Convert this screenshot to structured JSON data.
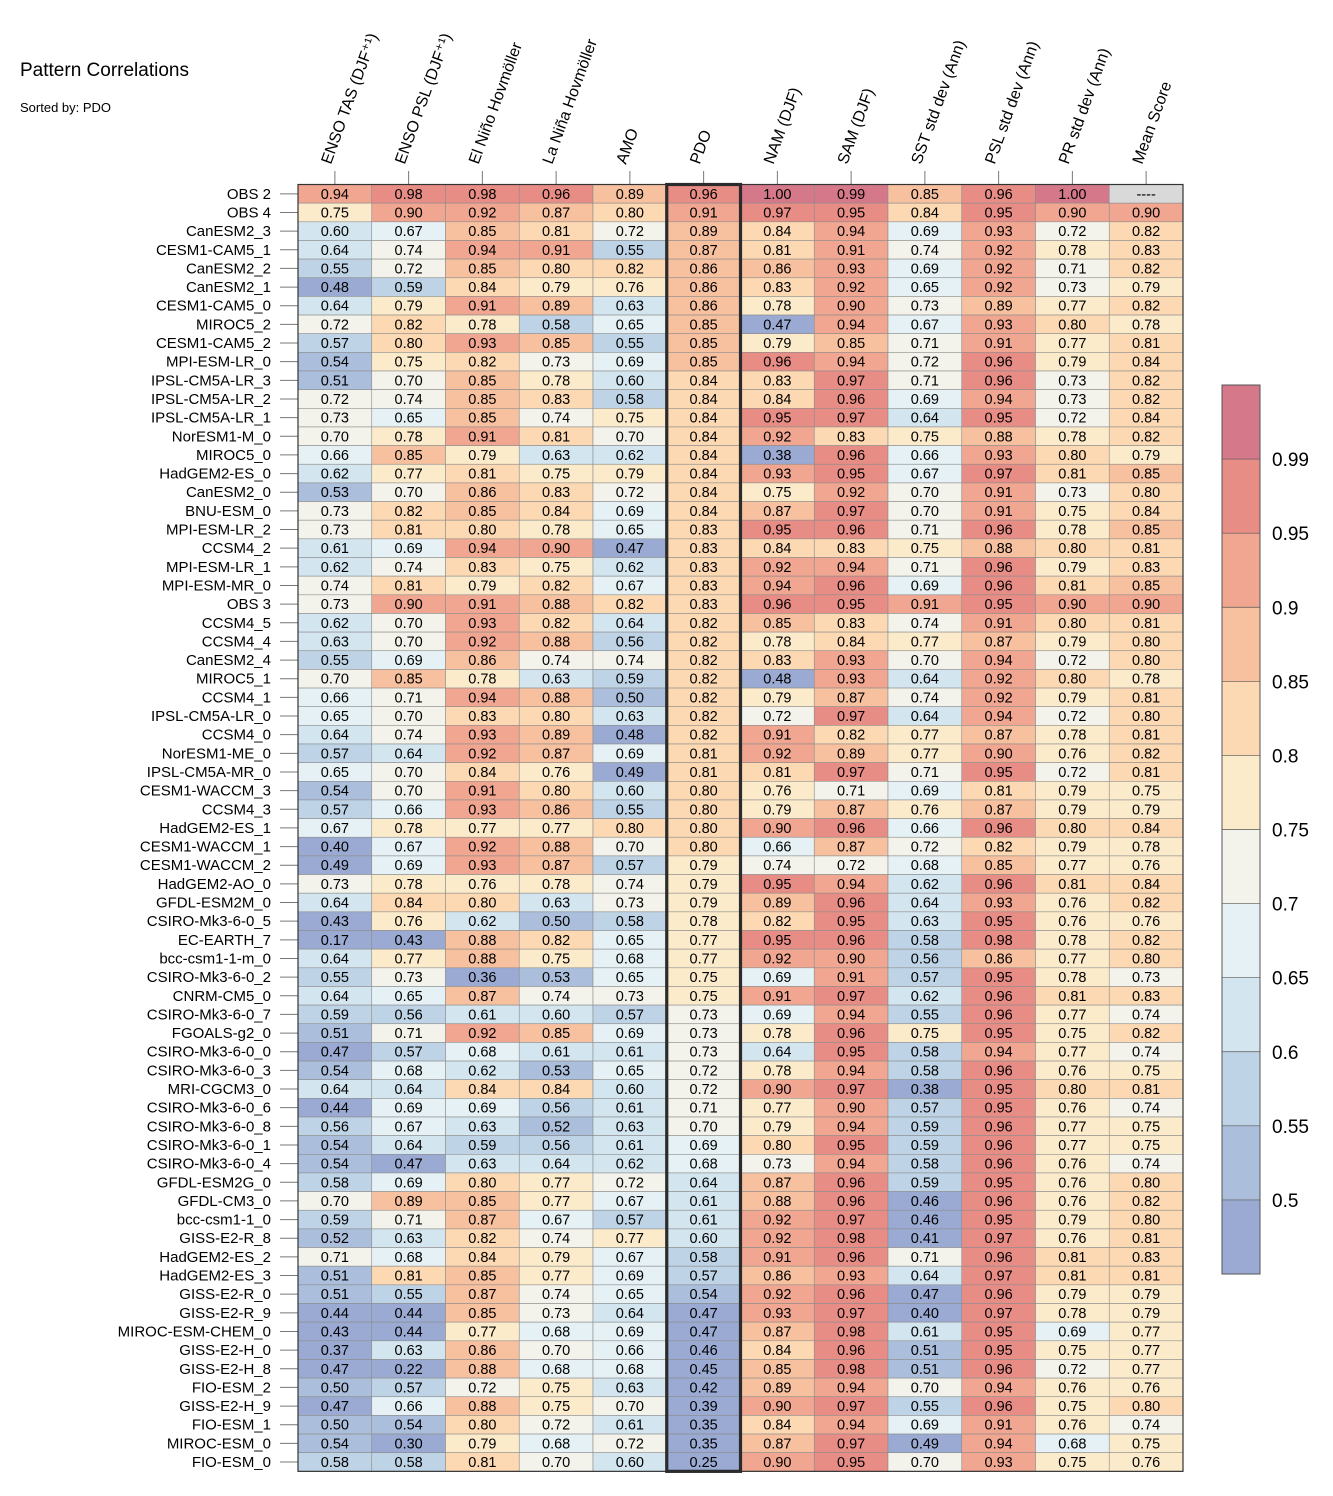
{
  "title": "Pattern Correlations",
  "subtitle": "Sorted by: PDO",
  "chart_data": {
    "type": "heatmap",
    "title": "Pattern Correlations",
    "subtitle": "Sorted by: PDO",
    "sorted_by": "PDO",
    "highlighted_column": "PDO",
    "columns": [
      "ENSO TAS (DJF⁺¹)",
      "ENSO PSL (DJF⁺¹)",
      "El Niño Hovmöller",
      "La Niña Hovmöller",
      "AMO",
      "PDO",
      "NAM (DJF)",
      "SAM (DJF)",
      "SST std dev (Ann)",
      "PSL std dev (Ann)",
      "PR std dev (Ann)",
      "Mean Score"
    ],
    "rows": [
      {
        "name": "OBS 2",
        "values": [
          0.94,
          0.98,
          0.98,
          0.96,
          0.89,
          0.96,
          1.0,
          0.99,
          0.85,
          0.96,
          1.0,
          null
        ]
      },
      {
        "name": "OBS 4",
        "values": [
          0.75,
          0.9,
          0.92,
          0.87,
          0.8,
          0.91,
          0.97,
          0.95,
          0.84,
          0.95,
          0.9,
          0.9
        ]
      },
      {
        "name": "CanESM2_3",
        "values": [
          0.6,
          0.67,
          0.85,
          0.81,
          0.72,
          0.89,
          0.84,
          0.94,
          0.69,
          0.93,
          0.72,
          0.82
        ]
      },
      {
        "name": "CESM1-CAM5_1",
        "values": [
          0.64,
          0.74,
          0.94,
          0.91,
          0.55,
          0.87,
          0.81,
          0.91,
          0.74,
          0.92,
          0.78,
          0.83
        ]
      },
      {
        "name": "CanESM2_2",
        "values": [
          0.55,
          0.72,
          0.85,
          0.8,
          0.82,
          0.86,
          0.86,
          0.93,
          0.69,
          0.92,
          0.71,
          0.82
        ]
      },
      {
        "name": "CanESM2_1",
        "values": [
          0.48,
          0.59,
          0.84,
          0.79,
          0.76,
          0.86,
          0.83,
          0.92,
          0.65,
          0.92,
          0.73,
          0.79
        ]
      },
      {
        "name": "CESM1-CAM5_0",
        "values": [
          0.64,
          0.79,
          0.91,
          0.89,
          0.63,
          0.86,
          0.78,
          0.9,
          0.73,
          0.89,
          0.77,
          0.82
        ]
      },
      {
        "name": "MIROC5_2",
        "values": [
          0.72,
          0.82,
          0.78,
          0.58,
          0.65,
          0.85,
          0.47,
          0.94,
          0.67,
          0.93,
          0.8,
          0.78
        ]
      },
      {
        "name": "CESM1-CAM5_2",
        "values": [
          0.57,
          0.8,
          0.93,
          0.85,
          0.55,
          0.85,
          0.79,
          0.85,
          0.71,
          0.91,
          0.77,
          0.81
        ]
      },
      {
        "name": "MPI-ESM-LR_0",
        "values": [
          0.54,
          0.75,
          0.82,
          0.73,
          0.69,
          0.85,
          0.96,
          0.94,
          0.72,
          0.96,
          0.79,
          0.84
        ]
      },
      {
        "name": "IPSL-CM5A-LR_3",
        "values": [
          0.51,
          0.7,
          0.85,
          0.78,
          0.6,
          0.84,
          0.83,
          0.97,
          0.71,
          0.96,
          0.73,
          0.82
        ]
      },
      {
        "name": "IPSL-CM5A-LR_2",
        "values": [
          0.72,
          0.74,
          0.85,
          0.83,
          0.58,
          0.84,
          0.84,
          0.96,
          0.69,
          0.94,
          0.73,
          0.82
        ]
      },
      {
        "name": "IPSL-CM5A-LR_1",
        "values": [
          0.73,
          0.65,
          0.85,
          0.74,
          0.75,
          0.84,
          0.95,
          0.97,
          0.64,
          0.95,
          0.72,
          0.84
        ]
      },
      {
        "name": "NorESM1-M_0",
        "values": [
          0.7,
          0.78,
          0.91,
          0.81,
          0.7,
          0.84,
          0.92,
          0.83,
          0.75,
          0.88,
          0.78,
          0.82
        ]
      },
      {
        "name": "MIROC5_0",
        "values": [
          0.66,
          0.85,
          0.79,
          0.63,
          0.62,
          0.84,
          0.38,
          0.96,
          0.66,
          0.93,
          0.8,
          0.79
        ]
      },
      {
        "name": "HadGEM2-ES_0",
        "values": [
          0.62,
          0.77,
          0.81,
          0.75,
          0.79,
          0.84,
          0.93,
          0.95,
          0.67,
          0.97,
          0.81,
          0.85
        ]
      },
      {
        "name": "CanESM2_0",
        "values": [
          0.53,
          0.7,
          0.86,
          0.83,
          0.72,
          0.84,
          0.75,
          0.92,
          0.7,
          0.91,
          0.73,
          0.8
        ]
      },
      {
        "name": "BNU-ESM_0",
        "values": [
          0.73,
          0.82,
          0.85,
          0.84,
          0.69,
          0.84,
          0.87,
          0.97,
          0.7,
          0.91,
          0.75,
          0.84
        ]
      },
      {
        "name": "MPI-ESM-LR_2",
        "values": [
          0.73,
          0.81,
          0.8,
          0.78,
          0.65,
          0.83,
          0.95,
          0.96,
          0.71,
          0.96,
          0.78,
          0.85
        ]
      },
      {
        "name": "CCSM4_2",
        "values": [
          0.61,
          0.69,
          0.94,
          0.9,
          0.47,
          0.83,
          0.84,
          0.83,
          0.75,
          0.88,
          0.8,
          0.81
        ]
      },
      {
        "name": "MPI-ESM-LR_1",
        "values": [
          0.62,
          0.74,
          0.83,
          0.75,
          0.62,
          0.83,
          0.92,
          0.94,
          0.71,
          0.96,
          0.79,
          0.83
        ]
      },
      {
        "name": "MPI-ESM-MR_0",
        "values": [
          0.74,
          0.81,
          0.79,
          0.82,
          0.67,
          0.83,
          0.94,
          0.96,
          0.69,
          0.96,
          0.81,
          0.85
        ]
      },
      {
        "name": "OBS 3",
        "values": [
          0.73,
          0.9,
          0.91,
          0.88,
          0.82,
          0.83,
          0.96,
          0.95,
          0.91,
          0.95,
          0.9,
          0.9
        ]
      },
      {
        "name": "CCSM4_5",
        "values": [
          0.62,
          0.7,
          0.93,
          0.82,
          0.64,
          0.82,
          0.85,
          0.83,
          0.74,
          0.91,
          0.8,
          0.81
        ]
      },
      {
        "name": "CCSM4_4",
        "values": [
          0.63,
          0.7,
          0.92,
          0.88,
          0.56,
          0.82,
          0.78,
          0.84,
          0.77,
          0.87,
          0.79,
          0.8
        ]
      },
      {
        "name": "CanESM2_4",
        "values": [
          0.55,
          0.69,
          0.86,
          0.74,
          0.74,
          0.82,
          0.83,
          0.93,
          0.7,
          0.94,
          0.72,
          0.8
        ]
      },
      {
        "name": "MIROC5_1",
        "values": [
          0.7,
          0.85,
          0.78,
          0.63,
          0.59,
          0.82,
          0.48,
          0.93,
          0.64,
          0.92,
          0.8,
          0.78
        ]
      },
      {
        "name": "CCSM4_1",
        "values": [
          0.66,
          0.71,
          0.94,
          0.88,
          0.5,
          0.82,
          0.79,
          0.87,
          0.74,
          0.92,
          0.79,
          0.81
        ]
      },
      {
        "name": "IPSL-CM5A-LR_0",
        "values": [
          0.65,
          0.7,
          0.83,
          0.8,
          0.63,
          0.82,
          0.72,
          0.97,
          0.64,
          0.94,
          0.72,
          0.8
        ]
      },
      {
        "name": "CCSM4_0",
        "values": [
          0.64,
          0.74,
          0.93,
          0.89,
          0.48,
          0.82,
          0.91,
          0.82,
          0.77,
          0.87,
          0.78,
          0.81
        ]
      },
      {
        "name": "NorESM1-ME_0",
        "values": [
          0.57,
          0.64,
          0.92,
          0.87,
          0.69,
          0.81,
          0.92,
          0.89,
          0.77,
          0.9,
          0.76,
          0.82
        ]
      },
      {
        "name": "IPSL-CM5A-MR_0",
        "values": [
          0.65,
          0.7,
          0.84,
          0.76,
          0.49,
          0.81,
          0.81,
          0.97,
          0.71,
          0.95,
          0.72,
          0.81
        ]
      },
      {
        "name": "CESM1-WACCM_3",
        "values": [
          0.54,
          0.7,
          0.91,
          0.8,
          0.6,
          0.8,
          0.76,
          0.71,
          0.69,
          0.81,
          0.79,
          0.75
        ]
      },
      {
        "name": "CCSM4_3",
        "values": [
          0.57,
          0.66,
          0.93,
          0.86,
          0.55,
          0.8,
          0.79,
          0.87,
          0.76,
          0.87,
          0.79,
          0.79
        ]
      },
      {
        "name": "HadGEM2-ES_1",
        "values": [
          0.67,
          0.78,
          0.77,
          0.77,
          0.8,
          0.8,
          0.9,
          0.96,
          0.66,
          0.96,
          0.8,
          0.84
        ]
      },
      {
        "name": "CESM1-WACCM_1",
        "values": [
          0.4,
          0.67,
          0.92,
          0.88,
          0.7,
          0.8,
          0.66,
          0.87,
          0.72,
          0.82,
          0.79,
          0.78
        ]
      },
      {
        "name": "CESM1-WACCM_2",
        "values": [
          0.49,
          0.69,
          0.93,
          0.87,
          0.57,
          0.79,
          0.74,
          0.72,
          0.68,
          0.85,
          0.77,
          0.76
        ]
      },
      {
        "name": "HadGEM2-AO_0",
        "values": [
          0.73,
          0.78,
          0.76,
          0.78,
          0.74,
          0.79,
          0.95,
          0.94,
          0.62,
          0.96,
          0.81,
          0.84
        ]
      },
      {
        "name": "GFDL-ESM2M_0",
        "values": [
          0.64,
          0.84,
          0.8,
          0.63,
          0.73,
          0.79,
          0.89,
          0.96,
          0.64,
          0.93,
          0.76,
          0.82
        ]
      },
      {
        "name": "CSIRO-Mk3-6-0_5",
        "values": [
          0.43,
          0.76,
          0.62,
          0.5,
          0.58,
          0.78,
          0.82,
          0.95,
          0.63,
          0.95,
          0.76,
          0.76
        ]
      },
      {
        "name": "EC-EARTH_7",
        "values": [
          0.17,
          0.43,
          0.88,
          0.82,
          0.65,
          0.77,
          0.95,
          0.96,
          0.58,
          0.98,
          0.78,
          0.82
        ]
      },
      {
        "name": "bcc-csm1-1-m_0",
        "values": [
          0.64,
          0.77,
          0.88,
          0.75,
          0.68,
          0.77,
          0.92,
          0.9,
          0.56,
          0.86,
          0.77,
          0.8
        ]
      },
      {
        "name": "CSIRO-Mk3-6-0_2",
        "values": [
          0.55,
          0.73,
          0.36,
          0.53,
          0.65,
          0.75,
          0.69,
          0.91,
          0.57,
          0.95,
          0.78,
          0.73
        ]
      },
      {
        "name": "CNRM-CM5_0",
        "values": [
          0.64,
          0.65,
          0.87,
          0.74,
          0.73,
          0.75,
          0.91,
          0.97,
          0.62,
          0.96,
          0.81,
          0.83
        ]
      },
      {
        "name": "CSIRO-Mk3-6-0_7",
        "values": [
          0.59,
          0.56,
          0.61,
          0.6,
          0.57,
          0.73,
          0.69,
          0.94,
          0.55,
          0.96,
          0.77,
          0.74
        ]
      },
      {
        "name": "FGOALS-g2_0",
        "values": [
          0.51,
          0.71,
          0.92,
          0.85,
          0.69,
          0.73,
          0.78,
          0.96,
          0.75,
          0.95,
          0.75,
          0.82
        ]
      },
      {
        "name": "CSIRO-Mk3-6-0_0",
        "values": [
          0.47,
          0.57,
          0.68,
          0.61,
          0.61,
          0.73,
          0.64,
          0.95,
          0.58,
          0.94,
          0.77,
          0.74
        ]
      },
      {
        "name": "CSIRO-Mk3-6-0_3",
        "values": [
          0.54,
          0.68,
          0.62,
          0.53,
          0.65,
          0.72,
          0.78,
          0.94,
          0.58,
          0.96,
          0.76,
          0.75
        ]
      },
      {
        "name": "MRI-CGCM3_0",
        "values": [
          0.64,
          0.64,
          0.84,
          0.84,
          0.6,
          0.72,
          0.9,
          0.97,
          0.38,
          0.95,
          0.8,
          0.81
        ]
      },
      {
        "name": "CSIRO-Mk3-6-0_6",
        "values": [
          0.44,
          0.69,
          0.69,
          0.56,
          0.61,
          0.71,
          0.77,
          0.9,
          0.57,
          0.95,
          0.76,
          0.74
        ]
      },
      {
        "name": "CSIRO-Mk3-6-0_8",
        "values": [
          0.56,
          0.67,
          0.63,
          0.52,
          0.63,
          0.7,
          0.79,
          0.94,
          0.59,
          0.96,
          0.77,
          0.75
        ]
      },
      {
        "name": "CSIRO-Mk3-6-0_1",
        "values": [
          0.54,
          0.64,
          0.59,
          0.56,
          0.61,
          0.69,
          0.8,
          0.95,
          0.59,
          0.96,
          0.77,
          0.75
        ]
      },
      {
        "name": "CSIRO-Mk3-6-0_4",
        "values": [
          0.54,
          0.47,
          0.63,
          0.64,
          0.62,
          0.68,
          0.73,
          0.94,
          0.58,
          0.96,
          0.76,
          0.74
        ]
      },
      {
        "name": "GFDL-ESM2G_0",
        "values": [
          0.58,
          0.69,
          0.8,
          0.77,
          0.72,
          0.64,
          0.87,
          0.96,
          0.59,
          0.95,
          0.76,
          0.8
        ]
      },
      {
        "name": "GFDL-CM3_0",
        "values": [
          0.7,
          0.89,
          0.85,
          0.77,
          0.67,
          0.61,
          0.88,
          0.96,
          0.46,
          0.96,
          0.76,
          0.82
        ]
      },
      {
        "name": "bcc-csm1-1_0",
        "values": [
          0.59,
          0.71,
          0.87,
          0.67,
          0.57,
          0.61,
          0.92,
          0.97,
          0.46,
          0.95,
          0.79,
          0.8
        ]
      },
      {
        "name": "GISS-E2-R_8",
        "values": [
          0.52,
          0.63,
          0.82,
          0.74,
          0.77,
          0.6,
          0.92,
          0.98,
          0.41,
          0.97,
          0.76,
          0.81
        ]
      },
      {
        "name": "HadGEM2-ES_2",
        "values": [
          0.71,
          0.68,
          0.84,
          0.79,
          0.67,
          0.58,
          0.91,
          0.96,
          0.71,
          0.96,
          0.81,
          0.83
        ]
      },
      {
        "name": "HadGEM2-ES_3",
        "values": [
          0.51,
          0.81,
          0.85,
          0.77,
          0.69,
          0.57,
          0.86,
          0.93,
          0.64,
          0.97,
          0.81,
          0.81
        ]
      },
      {
        "name": "GISS-E2-R_0",
        "values": [
          0.51,
          0.55,
          0.87,
          0.74,
          0.65,
          0.54,
          0.92,
          0.96,
          0.47,
          0.96,
          0.79,
          0.79
        ]
      },
      {
        "name": "GISS-E2-R_9",
        "values": [
          0.44,
          0.44,
          0.85,
          0.73,
          0.64,
          0.47,
          0.93,
          0.97,
          0.4,
          0.97,
          0.78,
          0.79
        ]
      },
      {
        "name": "MIROC-ESM-CHEM_0",
        "values": [
          0.43,
          0.44,
          0.77,
          0.68,
          0.69,
          0.47,
          0.87,
          0.98,
          0.61,
          0.95,
          0.69,
          0.77
        ]
      },
      {
        "name": "GISS-E2-H_0",
        "values": [
          0.37,
          0.63,
          0.86,
          0.7,
          0.66,
          0.46,
          0.84,
          0.96,
          0.51,
          0.95,
          0.75,
          0.77
        ]
      },
      {
        "name": "GISS-E2-H_8",
        "values": [
          0.47,
          0.22,
          0.88,
          0.68,
          0.68,
          0.45,
          0.85,
          0.98,
          0.51,
          0.96,
          0.72,
          0.77
        ]
      },
      {
        "name": "FIO-ESM_2",
        "values": [
          0.5,
          0.57,
          0.72,
          0.75,
          0.63,
          0.42,
          0.89,
          0.94,
          0.7,
          0.94,
          0.76,
          0.76
        ]
      },
      {
        "name": "GISS-E2-H_9",
        "values": [
          0.47,
          0.66,
          0.88,
          0.75,
          0.7,
          0.39,
          0.9,
          0.97,
          0.55,
          0.96,
          0.75,
          0.8
        ]
      },
      {
        "name": "FIO-ESM_1",
        "values": [
          0.5,
          0.54,
          0.8,
          0.72,
          0.61,
          0.35,
          0.84,
          0.94,
          0.69,
          0.91,
          0.76,
          0.74
        ]
      },
      {
        "name": "MIROC-ESM_0",
        "values": [
          0.54,
          0.3,
          0.79,
          0.68,
          0.72,
          0.35,
          0.87,
          0.97,
          0.49,
          0.94,
          0.68,
          0.75
        ]
      },
      {
        "name": "FIO-ESM_0",
        "values": [
          0.58,
          0.58,
          0.81,
          0.7,
          0.6,
          0.25,
          0.9,
          0.95,
          0.7,
          0.93,
          0.75,
          0.76
        ]
      }
    ],
    "missing_label": "----",
    "colorbar": {
      "ticks": [
        "0.5",
        "0.55",
        "0.6",
        "0.65",
        "0.7",
        "0.75",
        "0.8",
        "0.85",
        "0.9",
        "0.95",
        "0.99"
      ],
      "levels": [
        0.5,
        0.55,
        0.6,
        0.65,
        0.7,
        0.75,
        0.8,
        0.85,
        0.9,
        0.95,
        0.99
      ],
      "colors": [
        "#9aaad2",
        "#abbedb",
        "#bed4e6",
        "#d3e5ef",
        "#e5f1f5",
        "#f3f3eb",
        "#fcebcb",
        "#fcd9b2",
        "#f7c1a0",
        "#f0a690",
        "#e88d86",
        "#d5788a"
      ],
      "missing_color": "#d9d9d9"
    }
  }
}
